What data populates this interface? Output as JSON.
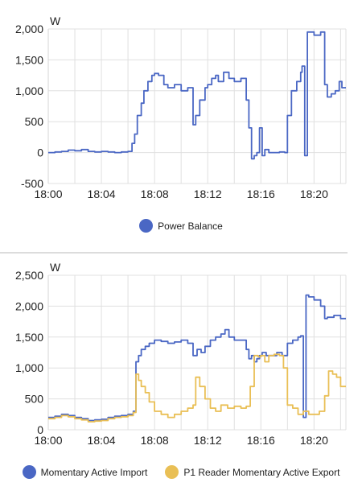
{
  "chart_data": [
    {
      "type": "line",
      "ylabel": "W",
      "ylim": [
        -500,
        2000
      ],
      "yticks": [
        -500,
        0,
        500,
        1000,
        1500,
        2000
      ],
      "ytick_labels": [
        "-500",
        "0",
        "500",
        "1,000",
        "1,500",
        "2,000"
      ],
      "xlim": [
        0,
        22.4
      ],
      "xticks": [
        0,
        4,
        8,
        12,
        16,
        20
      ],
      "xtick_labels": [
        "18:00",
        "18:04",
        "18:08",
        "18:12",
        "18:16",
        "18:20"
      ],
      "step": true,
      "grid": true,
      "legend_position": "bottom",
      "series": [
        {
          "name": "Power Balance",
          "color": "#4a67c4",
          "x": [
            0,
            0.5,
            1.0,
            1.5,
            2.0,
            2.5,
            3.0,
            3.5,
            4.0,
            4.5,
            5.0,
            5.5,
            6.0,
            6.3,
            6.5,
            6.7,
            7.0,
            7.2,
            7.5,
            7.8,
            8.0,
            8.3,
            8.7,
            9.0,
            9.5,
            10.0,
            10.5,
            10.9,
            11.1,
            11.4,
            11.8,
            12.0,
            12.3,
            12.6,
            12.8,
            13.2,
            13.6,
            14.0,
            14.5,
            14.9,
            15.1,
            15.3,
            15.5,
            15.7,
            15.9,
            16.1,
            16.3,
            16.6,
            17.0,
            17.4,
            17.8,
            18.0,
            18.3,
            18.7,
            19.0,
            19.1,
            19.3,
            19.5,
            20.0,
            20.5,
            20.8,
            21.0,
            21.3,
            21.6,
            21.9,
            22.1,
            22.4
          ],
          "y": [
            0,
            10,
            20,
            40,
            30,
            50,
            20,
            10,
            20,
            10,
            0,
            10,
            20,
            150,
            300,
            600,
            800,
            1000,
            1150,
            1250,
            1280,
            1250,
            1100,
            1050,
            1100,
            1000,
            1050,
            450,
            600,
            850,
            1050,
            1100,
            1200,
            1250,
            1150,
            1300,
            1200,
            1150,
            1200,
            850,
            400,
            -100,
            -50,
            0,
            400,
            -50,
            50,
            0,
            0,
            10,
            0,
            600,
            1000,
            1150,
            1300,
            1400,
            -50,
            1950,
            1900,
            1950,
            1100,
            900,
            950,
            1000,
            1150,
            1050,
            1050
          ]
        }
      ]
    },
    {
      "type": "line",
      "ylabel": "W",
      "ylim": [
        0,
        2500
      ],
      "yticks": [
        0,
        500,
        1000,
        1500,
        2000,
        2500
      ],
      "ytick_labels": [
        "0",
        "500",
        "1,000",
        "1,500",
        "2,000",
        "2,500"
      ],
      "xlim": [
        0,
        22.4
      ],
      "xticks": [
        0,
        4,
        8,
        12,
        16,
        20
      ],
      "xtick_labels": [
        "18:00",
        "18:04",
        "18:08",
        "18:12",
        "18:16",
        "18:20"
      ],
      "step": true,
      "grid": true,
      "legend_position": "bottom",
      "series": [
        {
          "name": "Momentary Active Import",
          "color": "#4a67c4",
          "x": [
            0,
            0.5,
            1.0,
            1.5,
            2.0,
            2.5,
            3.0,
            3.5,
            4.0,
            4.5,
            5.0,
            5.5,
            6.0,
            6.4,
            6.6,
            6.8,
            7.0,
            7.3,
            7.6,
            8.0,
            8.5,
            9.0,
            9.5,
            10.0,
            10.5,
            10.9,
            11.2,
            11.5,
            11.8,
            12.2,
            12.6,
            13.0,
            13.3,
            13.6,
            14.0,
            14.5,
            14.9,
            15.1,
            15.3,
            15.5,
            15.7,
            15.9,
            16.1,
            16.4,
            16.8,
            17.2,
            17.6,
            18.0,
            18.4,
            18.8,
            19.0,
            19.2,
            19.4,
            19.6,
            20.0,
            20.5,
            20.8,
            21.0,
            21.5,
            22.0,
            22.4
          ],
          "y": [
            200,
            220,
            250,
            230,
            200,
            180,
            150,
            160,
            170,
            200,
            220,
            230,
            250,
            300,
            1100,
            1200,
            1300,
            1350,
            1400,
            1450,
            1430,
            1400,
            1420,
            1450,
            1400,
            1200,
            1300,
            1250,
            1350,
            1450,
            1500,
            1550,
            1620,
            1500,
            1450,
            1450,
            1300,
            1150,
            1200,
            1100,
            1150,
            1200,
            1250,
            1200,
            1200,
            1250,
            1200,
            1400,
            1450,
            1500,
            1520,
            200,
            2180,
            2150,
            2100,
            2000,
            1800,
            1820,
            1850,
            1800,
            1800
          ]
        },
        {
          "name": "P1 Reader Momentary Active Export",
          "color": "#e9bf55",
          "x": [
            0,
            0.5,
            1.0,
            1.5,
            2.0,
            2.5,
            3.0,
            3.5,
            4.0,
            4.5,
            5.0,
            5.5,
            6.0,
            6.4,
            6.6,
            6.8,
            7.0,
            7.3,
            7.6,
            8.0,
            8.5,
            9.0,
            9.5,
            10.0,
            10.5,
            10.9,
            11.1,
            11.4,
            11.8,
            12.2,
            12.6,
            13.0,
            13.5,
            14.0,
            14.5,
            14.9,
            15.2,
            15.5,
            15.8,
            16.0,
            16.3,
            16.6,
            17.0,
            17.4,
            17.7,
            18.0,
            18.4,
            18.8,
            19.2,
            19.6,
            20.0,
            20.4,
            20.8,
            21.1,
            21.4,
            21.7,
            22.0,
            22.4
          ],
          "y": [
            180,
            200,
            230,
            210,
            180,
            160,
            130,
            140,
            150,
            180,
            200,
            210,
            230,
            280,
            900,
            800,
            700,
            600,
            450,
            300,
            250,
            200,
            250,
            300,
            350,
            400,
            850,
            700,
            500,
            350,
            300,
            400,
            350,
            380,
            350,
            380,
            700,
            1200,
            1180,
            1200,
            1100,
            1200,
            1220,
            1200,
            1000,
            400,
            350,
            250,
            300,
            250,
            250,
            300,
            550,
            950,
            900,
            850,
            700,
            700
          ]
        }
      ]
    }
  ]
}
